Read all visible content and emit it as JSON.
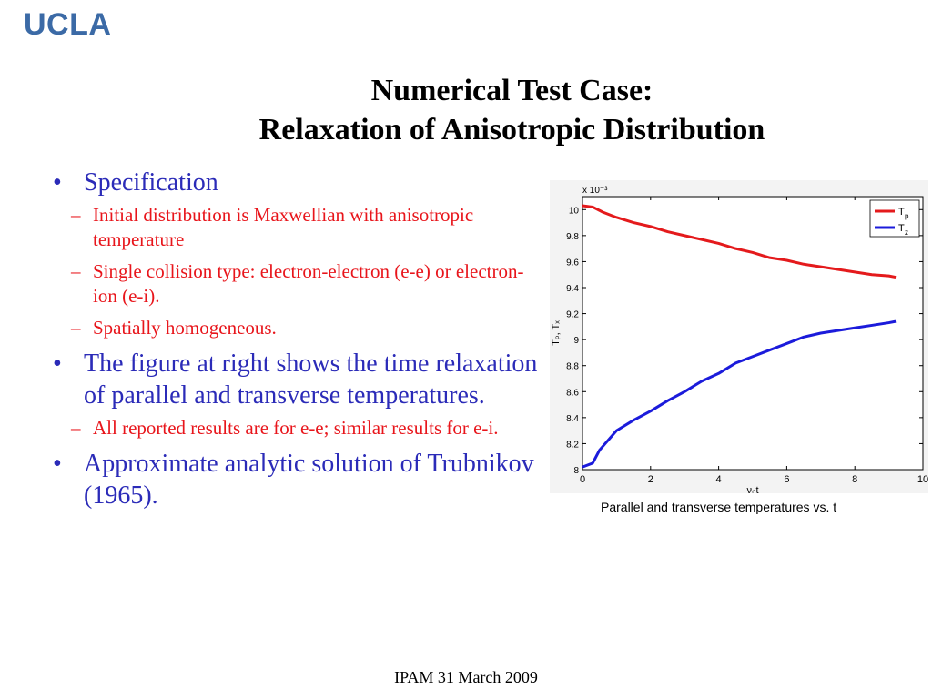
{
  "logo": "UCLA",
  "title": {
    "line1": "Numerical Test Case:",
    "line2": "Relaxation of Anisotropic Distribution"
  },
  "bullets": {
    "b1": {
      "text": "Specification",
      "subs": [
        "Initial distribution is Maxwellian with anisotropic temperature",
        "Single collision type: electron-electron (e-e) or electron-ion (e-i).",
        "Spatially homogeneous."
      ]
    },
    "b2": {
      "text": "The figure at right shows the time relaxation of parallel and transverse temperatures.",
      "subs": [
        "All reported results are for e-e; similar results for e-i."
      ]
    },
    "b3": {
      "text": "Approximate analytic solution of Trubnikov (1965)."
    }
  },
  "caption": "Parallel and transverse  temperatures vs. t",
  "footer": "IPAM 31 March 2009",
  "colors": {
    "bullet": "#2b2bb8",
    "sub": "#e8151b",
    "logo": "#3b6aa6"
  },
  "chart_data": {
    "type": "line",
    "xlabel": "ν₀t",
    "ylabel": "Tₚ, Tₓ",
    "y_multiplier_label": "x 10⁻³",
    "xlim": [
      0,
      10
    ],
    "ylim": [
      8,
      10.1
    ],
    "xticks": [
      0,
      2,
      4,
      6,
      8,
      10
    ],
    "yticks": [
      8,
      8.2,
      8.4,
      8.6,
      8.8,
      9,
      9.2,
      9.4,
      9.6,
      9.8,
      10
    ],
    "xtick_labels": [
      "0",
      "2",
      "4",
      "6",
      "8",
      "10"
    ],
    "ytick_labels": [
      "8",
      "8.2",
      "8.4",
      "8.6",
      "8.8",
      "9",
      "9.2",
      "9.4",
      "9.6",
      "9.8",
      "10"
    ],
    "legend": "top-right",
    "series": [
      {
        "name": "T",
        "subscript": "p",
        "color": "#e41a1c",
        "x": [
          0,
          0.3,
          0.6,
          1,
          1.5,
          2,
          2.5,
          3,
          3.5,
          4,
          4.5,
          5,
          5.5,
          6,
          6.5,
          7,
          7.5,
          8,
          8.5,
          9,
          9.2
        ],
        "y": [
          10.03,
          10.02,
          9.98,
          9.94,
          9.9,
          9.87,
          9.83,
          9.8,
          9.77,
          9.74,
          9.7,
          9.67,
          9.63,
          9.61,
          9.58,
          9.56,
          9.54,
          9.52,
          9.5,
          9.49,
          9.48
        ]
      },
      {
        "name": "T",
        "subscript": "z",
        "color": "#1b1bdb",
        "x": [
          0,
          0.3,
          0.5,
          1,
          1.5,
          2,
          2.5,
          3,
          3.5,
          4,
          4.5,
          5,
          5.5,
          6,
          6.5,
          7,
          7.5,
          8,
          8.5,
          9,
          9.2
        ],
        "y": [
          8.02,
          8.05,
          8.15,
          8.3,
          8.38,
          8.45,
          8.53,
          8.6,
          8.68,
          8.74,
          8.82,
          8.87,
          8.92,
          8.97,
          9.02,
          9.05,
          9.07,
          9.09,
          9.11,
          9.13,
          9.14
        ]
      }
    ]
  }
}
